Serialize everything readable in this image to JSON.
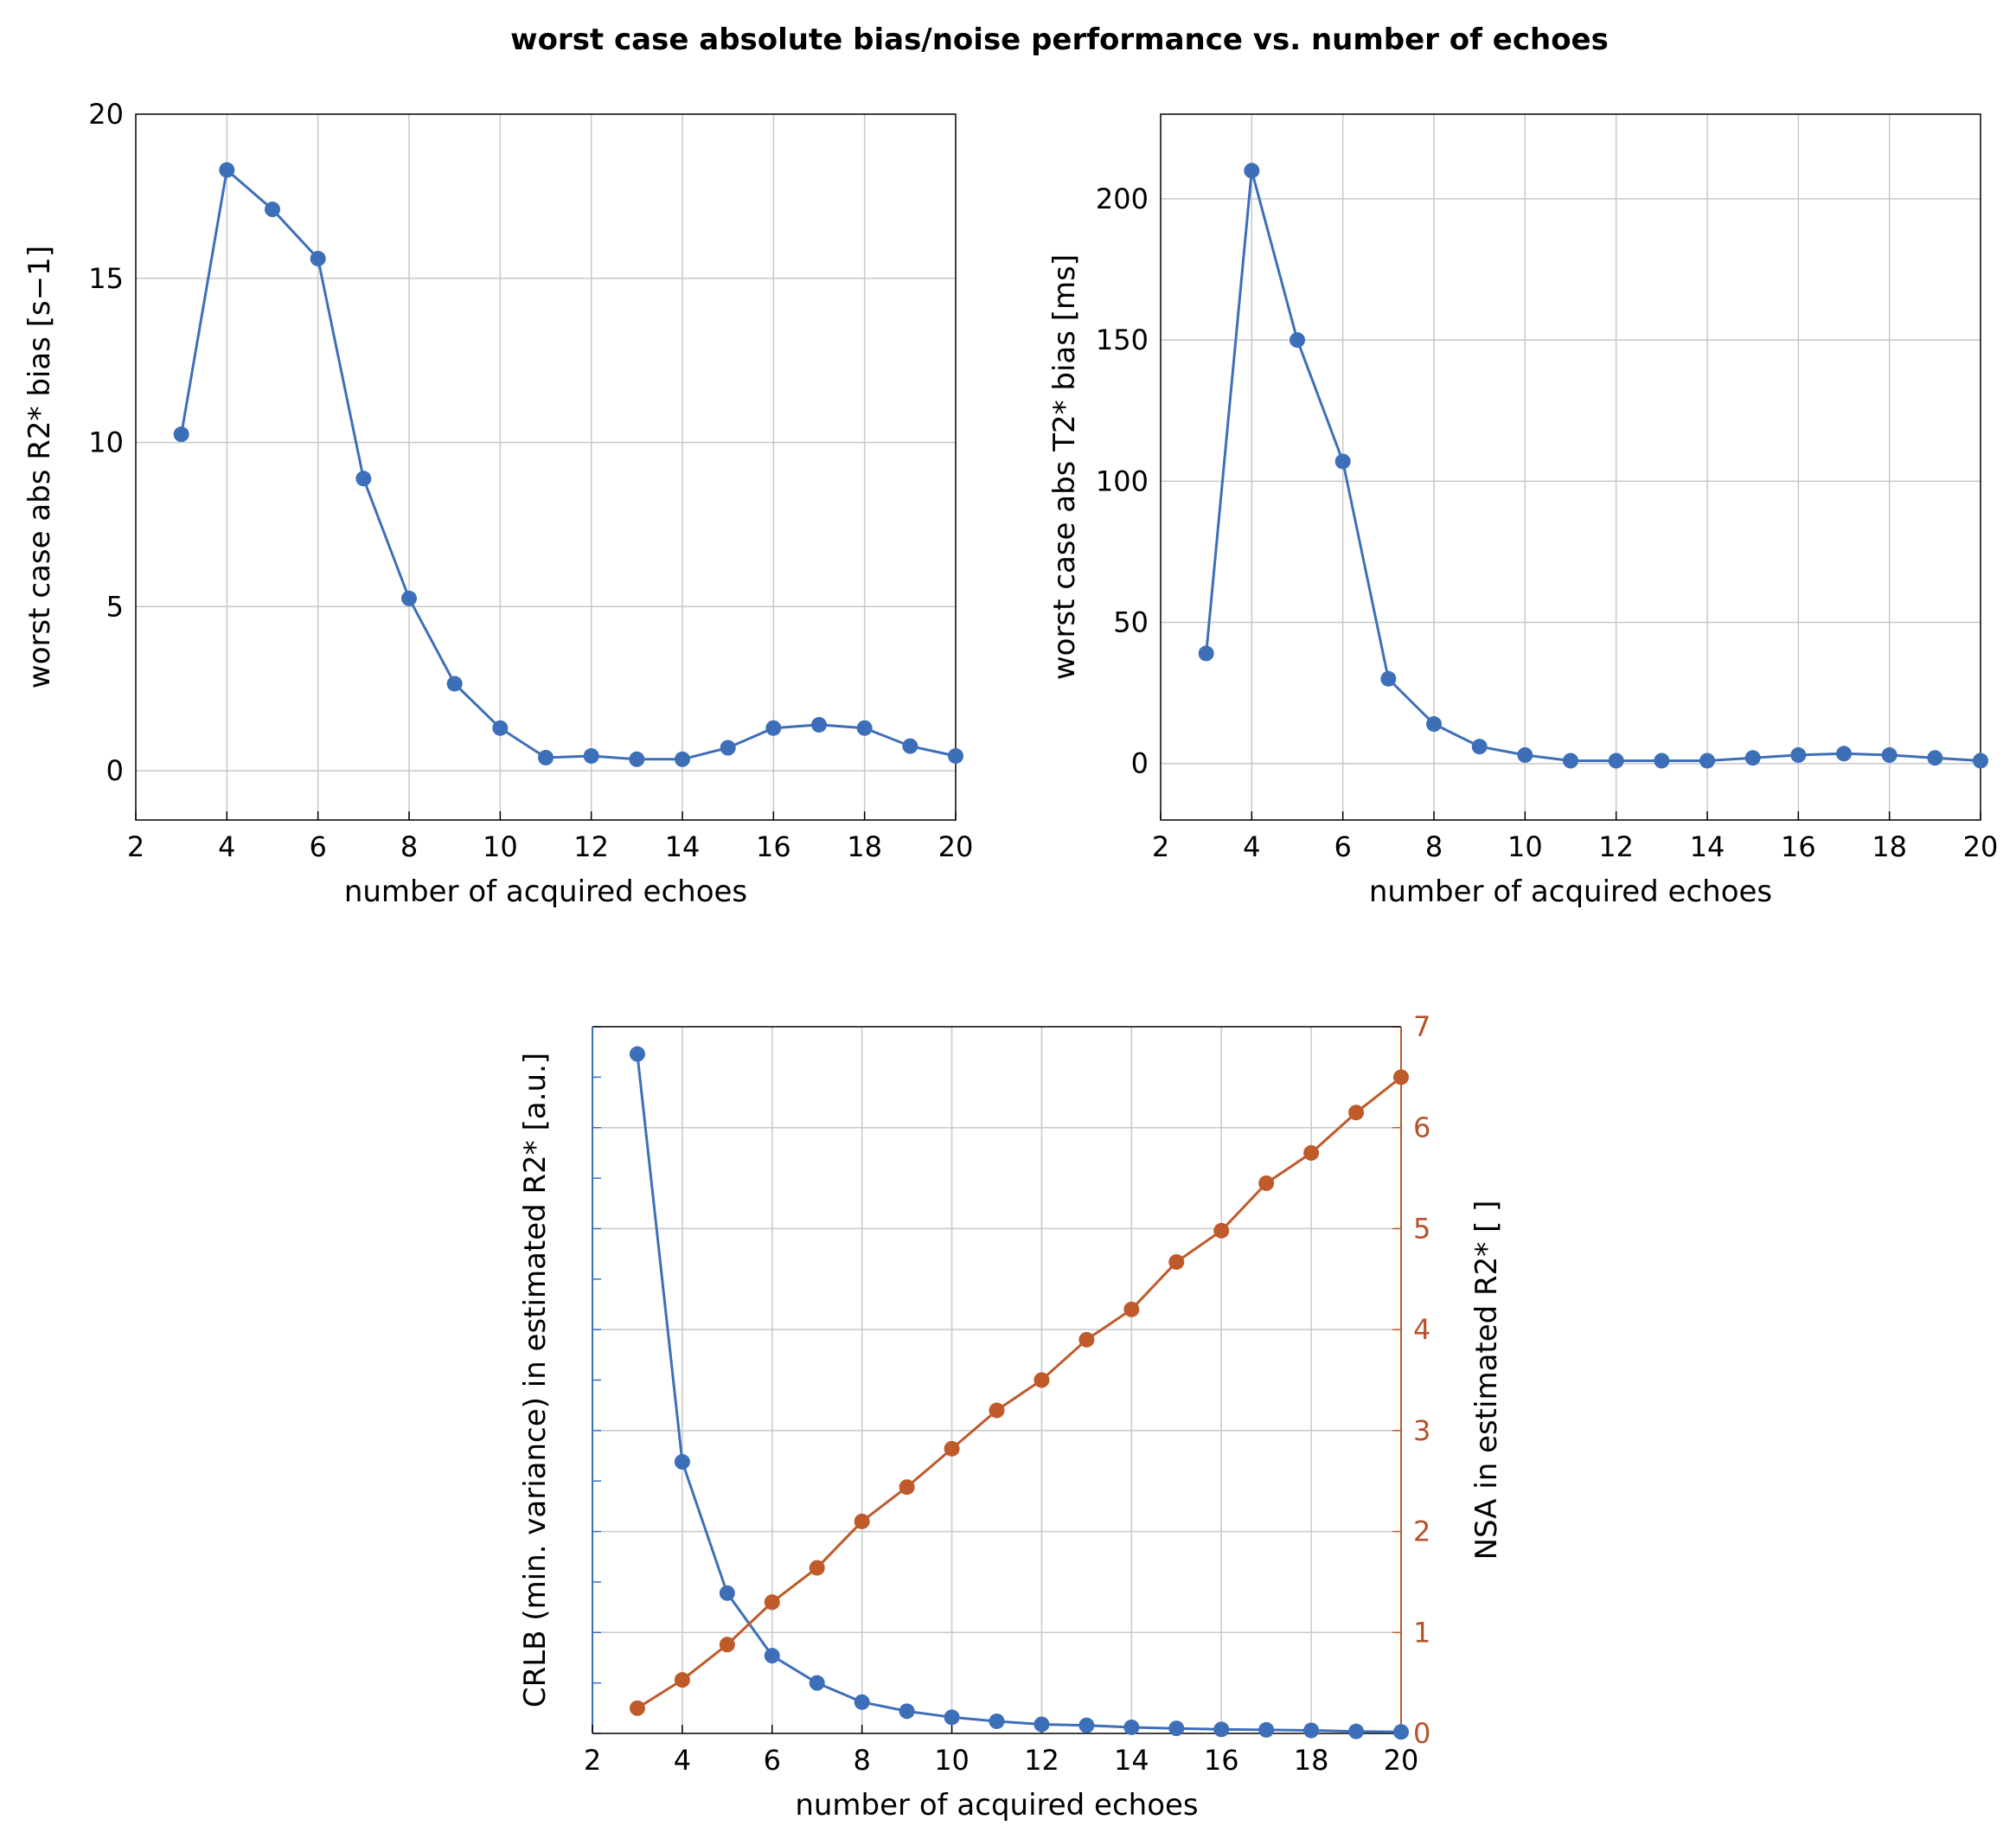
{
  "title": "worst case absolute bias/noise performance vs. number of echoes",
  "colors": {
    "blue": "#3d6fb9",
    "orange": "#bf5a2a",
    "grid": "#c8c8c8"
  },
  "chart_data": [
    {
      "type": "line",
      "xlabel": "number of acquired echoes",
      "ylabel": "worst case abs R2* bias [s−1]",
      "xlim": [
        2,
        20
      ],
      "ylim": [
        -1.5,
        20
      ],
      "xticks": [
        "2",
        "4",
        "6",
        "8",
        "10",
        "12",
        "14",
        "16",
        "18",
        "20"
      ],
      "yticks": [
        "0",
        "5",
        "10",
        "15",
        "20"
      ],
      "grid": true,
      "x": [
        3,
        4,
        5,
        6,
        7,
        8,
        9,
        10,
        11,
        12,
        13,
        14,
        15,
        16,
        17,
        18,
        19,
        20
      ],
      "series": [
        {
          "values": [
            10.25,
            18.3,
            17.1,
            15.6,
            8.9,
            5.25,
            2.65,
            1.3,
            0.4,
            0.45,
            0.35,
            0.35,
            0.7,
            1.3,
            1.4,
            1.3,
            0.75,
            0.45
          ]
        }
      ]
    },
    {
      "type": "line",
      "xlabel": "number of acquired echoes",
      "ylabel": "worst case abs T2* bias [ms]",
      "xlim": [
        2,
        20
      ],
      "ylim": [
        -20,
        230
      ],
      "xticks": [
        "2",
        "4",
        "6",
        "8",
        "10",
        "12",
        "14",
        "16",
        "18",
        "20"
      ],
      "yticks": [
        "0",
        "50",
        "100",
        "150",
        "200"
      ],
      "grid": true,
      "x": [
        3,
        4,
        5,
        6,
        7,
        8,
        9,
        10,
        11,
        12,
        13,
        14,
        15,
        16,
        17,
        18,
        19,
        20
      ],
      "series": [
        {
          "values": [
            39,
            210,
            150,
            107,
            30,
            14,
            6,
            3,
            1,
            1,
            1,
            1,
            2,
            3,
            3.5,
            3,
            2,
            1
          ]
        }
      ]
    },
    {
      "type": "line",
      "xlabel": "number of acquired echoes",
      "ylabel": "CRLB (min. variance) in estimated R2* [a.u.]",
      "ylabel_right": "NSA in estimated R2* [ ]",
      "xlim": [
        2,
        20
      ],
      "ylim": [
        0,
        7
      ],
      "ylim_right": [
        0,
        7
      ],
      "xticks": [
        "2",
        "4",
        "6",
        "8",
        "10",
        "12",
        "14",
        "16",
        "18",
        "20"
      ],
      "yticks_right": [
        "0",
        "1",
        "2",
        "3",
        "4",
        "5",
        "6",
        "7"
      ],
      "grid": true,
      "x": [
        3,
        4,
        5,
        6,
        7,
        8,
        9,
        10,
        11,
        12,
        13,
        14,
        15,
        16,
        17,
        18,
        19,
        20
      ],
      "series": [
        {
          "axis": "left",
          "values": [
            6.73,
            2.69,
            1.39,
            0.77,
            0.5,
            0.31,
            0.22,
            0.16,
            0.12,
            0.09,
            0.08,
            0.06,
            0.05,
            0.04,
            0.035,
            0.03,
            0.02,
            0.015
          ]
        },
        {
          "axis": "right",
          "values": [
            0.25,
            0.53,
            0.88,
            1.3,
            1.64,
            2.1,
            2.44,
            2.82,
            3.2,
            3.5,
            3.9,
            4.2,
            4.67,
            4.98,
            5.45,
            5.75,
            6.15,
            6.5
          ]
        }
      ]
    }
  ]
}
